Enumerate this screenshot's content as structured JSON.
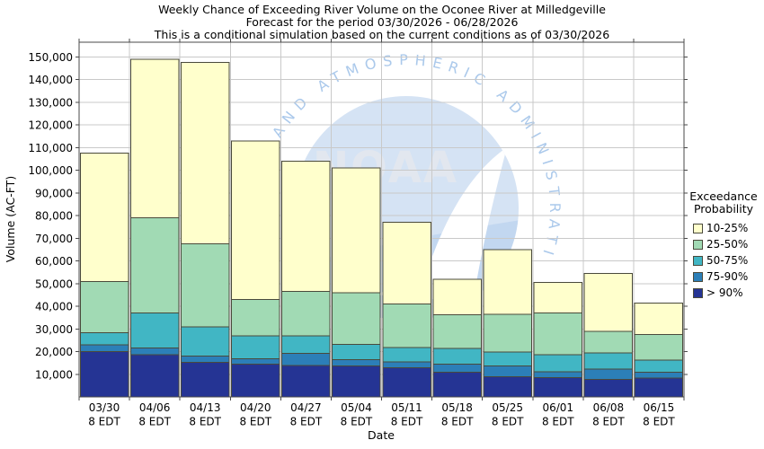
{
  "title": {
    "line1": "Weekly Chance of Exceeding River Volume on the Oconee River at Milledgeville",
    "line2": "Forecast for the period 03/30/2026 - 06/28/2026",
    "line3": "This is a conditional simulation based on the current conditions as of 03/30/2026"
  },
  "legend": {
    "title_line1": "Exceedance",
    "title_line2": "Probability"
  },
  "watermark": {
    "org_acronym": "NOAA",
    "arc_text": "OCEANIC AND ATMOSPHERIC ADMINISTRATION"
  },
  "chart_data": {
    "type": "bar",
    "stacked": true,
    "title": "Weekly Chance of Exceeding River Volume on the Oconee River at Milledgeville",
    "subtitle": "Forecast for the period 03/30/2026 - 06/28/2026",
    "note": "This is a conditional simulation based on the current conditions as of 03/30/2026",
    "xlabel": "Date",
    "ylabel": "Volume (AC-FT)",
    "units": "AC-FT",
    "ylim": [
      0,
      156500
    ],
    "yticks": [
      10000,
      20000,
      30000,
      40000,
      50000,
      60000,
      70000,
      80000,
      90000,
      100000,
      110000,
      120000,
      130000,
      140000,
      150000
    ],
    "grid": true,
    "legend_title": "Exceedance Probability",
    "legend_position": "right",
    "categories": [
      "03/30",
      "04/06",
      "04/13",
      "04/20",
      "04/27",
      "05/04",
      "05/11",
      "05/18",
      "05/25",
      "06/01",
      "06/08",
      "06/15"
    ],
    "category_sublabel": "8 EDT",
    "series_note": "tops = volume (AC-FT) at the upper edge of each exceedance-probability band; lowest band extends to 0",
    "series": [
      {
        "name": "10-25%",
        "color": "#FFFFCC",
        "tops": [
          107500,
          149000,
          147500,
          113000,
          104000,
          101000,
          77000,
          52000,
          65000,
          50500,
          54500,
          41500
        ]
      },
      {
        "name": "25-50%",
        "color": "#A1DAB4",
        "tops": [
          51000,
          79000,
          67500,
          43000,
          46500,
          46000,
          41000,
          36300,
          36500,
          37100,
          29000,
          27500
        ]
      },
      {
        "name": "50-75%",
        "color": "#41B6C4",
        "tops": [
          28400,
          37000,
          31000,
          27000,
          27000,
          23100,
          21700,
          21300,
          19800,
          18700,
          19400,
          16200
        ]
      },
      {
        "name": "75-90%",
        "color": "#2C7FB8",
        "tops": [
          22900,
          21500,
          18000,
          16900,
          19200,
          16400,
          15400,
          14400,
          13600,
          11000,
          12200,
          10800
        ]
      },
      {
        "name": "> 90%",
        "color": "#253494",
        "tops": [
          20100,
          18700,
          15300,
          14500,
          13900,
          13600,
          12800,
          10900,
          8900,
          8600,
          7700,
          8400
        ]
      }
    ]
  }
}
